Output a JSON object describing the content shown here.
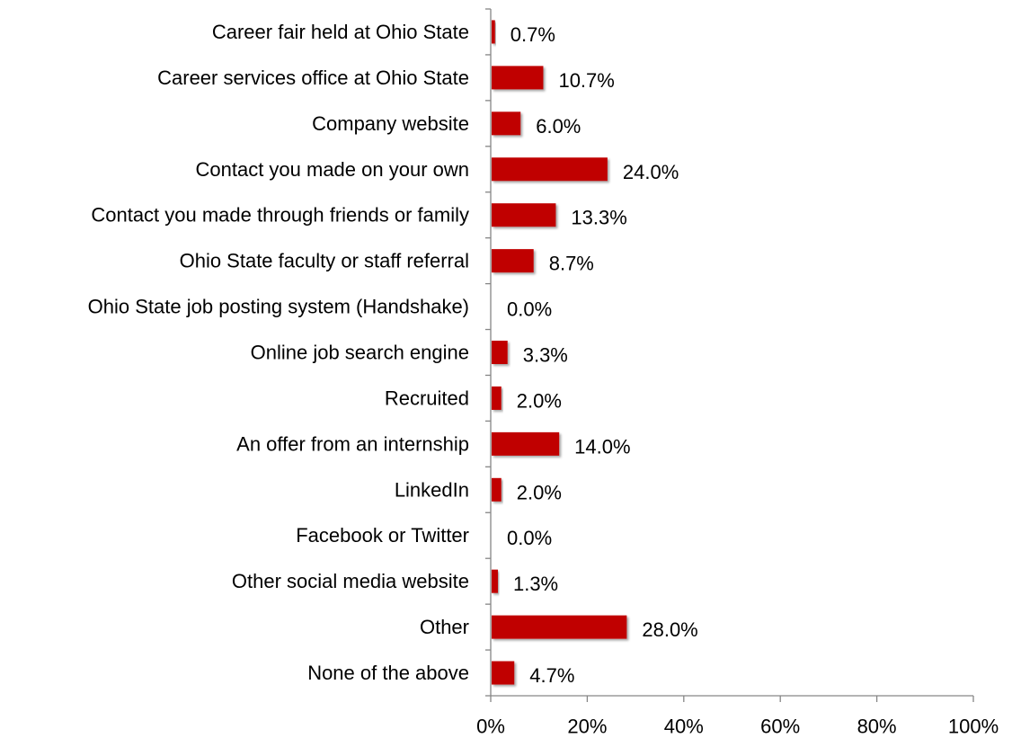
{
  "chart_data": {
    "type": "bar",
    "orientation": "horizontal",
    "categories": [
      "Career fair held at Ohio State",
      "Career services office at Ohio State",
      "Company website",
      "Contact you made on your own",
      "Contact you made through friends or family",
      "Ohio State faculty or staff referral",
      "Ohio State job posting system (Handshake)",
      "Online job search engine",
      "Recruited",
      "An offer from an internship",
      "LinkedIn",
      "Facebook or Twitter",
      "Other social media website",
      "Other",
      "None of the above"
    ],
    "values": [
      0.7,
      10.7,
      6.0,
      24.0,
      13.3,
      8.7,
      0.0,
      3.3,
      2.0,
      14.0,
      2.0,
      0.0,
      1.3,
      28.0,
      4.7
    ],
    "value_labels": [
      "0.7%",
      "10.7%",
      "6.0%",
      "24.0%",
      "13.3%",
      "8.7%",
      "0.0%",
      "3.3%",
      "2.0%",
      "14.0%",
      "2.0%",
      "0.0%",
      "1.3%",
      "28.0%",
      "4.7%"
    ],
    "x_ticks": [
      0,
      20,
      40,
      60,
      80,
      100
    ],
    "x_tick_labels": [
      "0%",
      "20%",
      "40%",
      "60%",
      "80%",
      "100%"
    ],
    "xlim": [
      0,
      100
    ],
    "title": "",
    "xlabel": "",
    "ylabel": "",
    "grid": false,
    "legend": "none",
    "bar_color": "#c00000"
  }
}
